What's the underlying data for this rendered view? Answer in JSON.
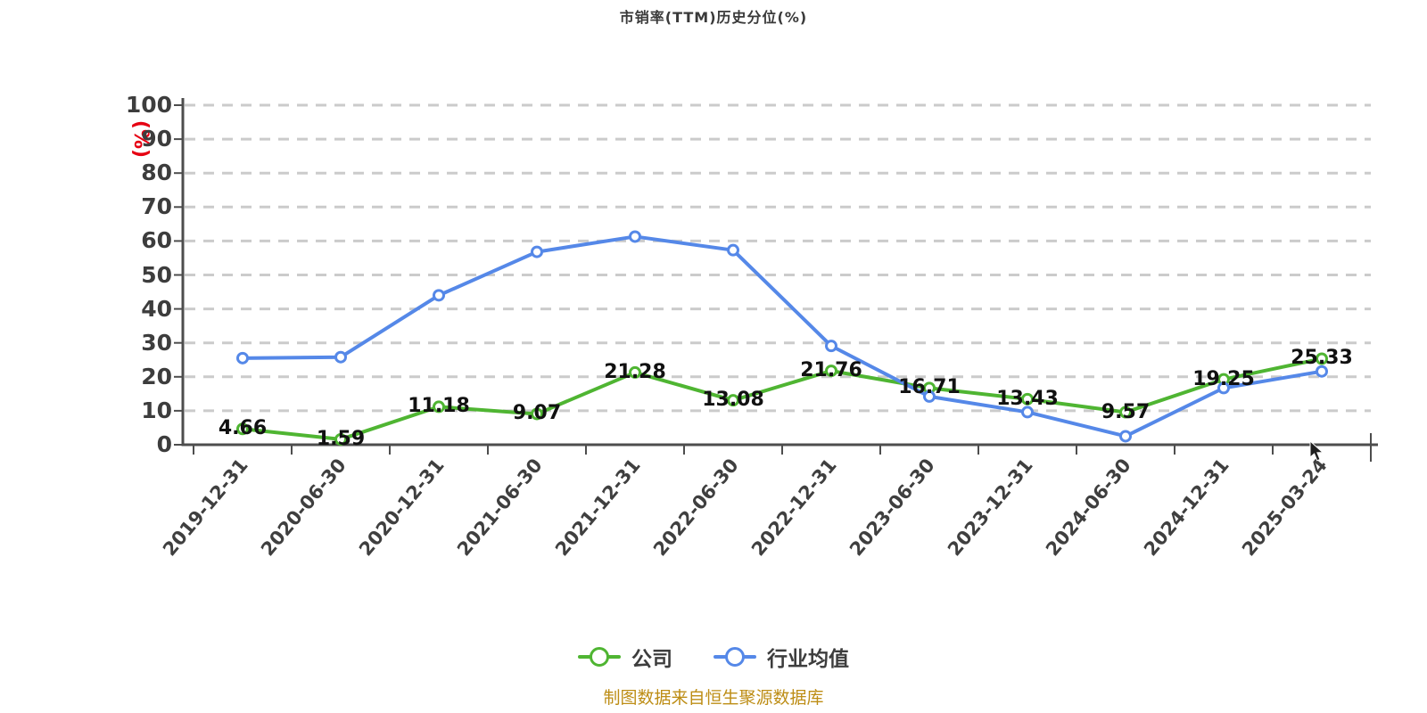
{
  "chart_data": {
    "type": "line",
    "title": "市销率(TTM)历史分位(%)",
    "ylabel": "(%)",
    "ylabel_color": "#e60012",
    "ylim": [
      0,
      100
    ],
    "yticks": [
      0,
      10,
      20,
      30,
      40,
      50,
      60,
      70,
      80,
      90,
      100
    ],
    "grid": "horizontal dashed",
    "grid_color": "#cbcbcb",
    "axis_color": "#4d4d4d",
    "legend_position": "bottom-center",
    "categories": [
      "2019-12-31",
      "2020-06-30",
      "2020-12-31",
      "2021-06-30",
      "2021-12-31",
      "2022-06-30",
      "2022-12-31",
      "2023-06-30",
      "2023-12-31",
      "2024-06-30",
      "2024-12-31",
      "2025-03-24"
    ],
    "series": [
      {
        "name": "公司",
        "color": "#4fb532",
        "values": [
          4.66,
          1.59,
          11.18,
          9.07,
          21.28,
          13.08,
          21.76,
          16.71,
          13.43,
          9.57,
          19.25,
          25.33
        ],
        "point_labels": [
          "4.66",
          "1.59",
          "11.18",
          "9.07",
          "21.28",
          "13.08",
          "21.76",
          "16.71",
          "13.43",
          "9.57",
          "19.25",
          "25.33"
        ]
      },
      {
        "name": "行业均值",
        "color": "#5588e8",
        "values": [
          25.5,
          25.8,
          44.0,
          56.8,
          61.3,
          57.3,
          29.1,
          14.2,
          9.6,
          2.5,
          16.7,
          21.6
        ],
        "point_labels": []
      }
    ]
  },
  "legend": {
    "items": [
      {
        "label": "公司"
      },
      {
        "label": "行业均值"
      }
    ]
  },
  "footer": {
    "source_note": "制图数据来自恒生聚源数据库",
    "color": "#bd8d15"
  }
}
